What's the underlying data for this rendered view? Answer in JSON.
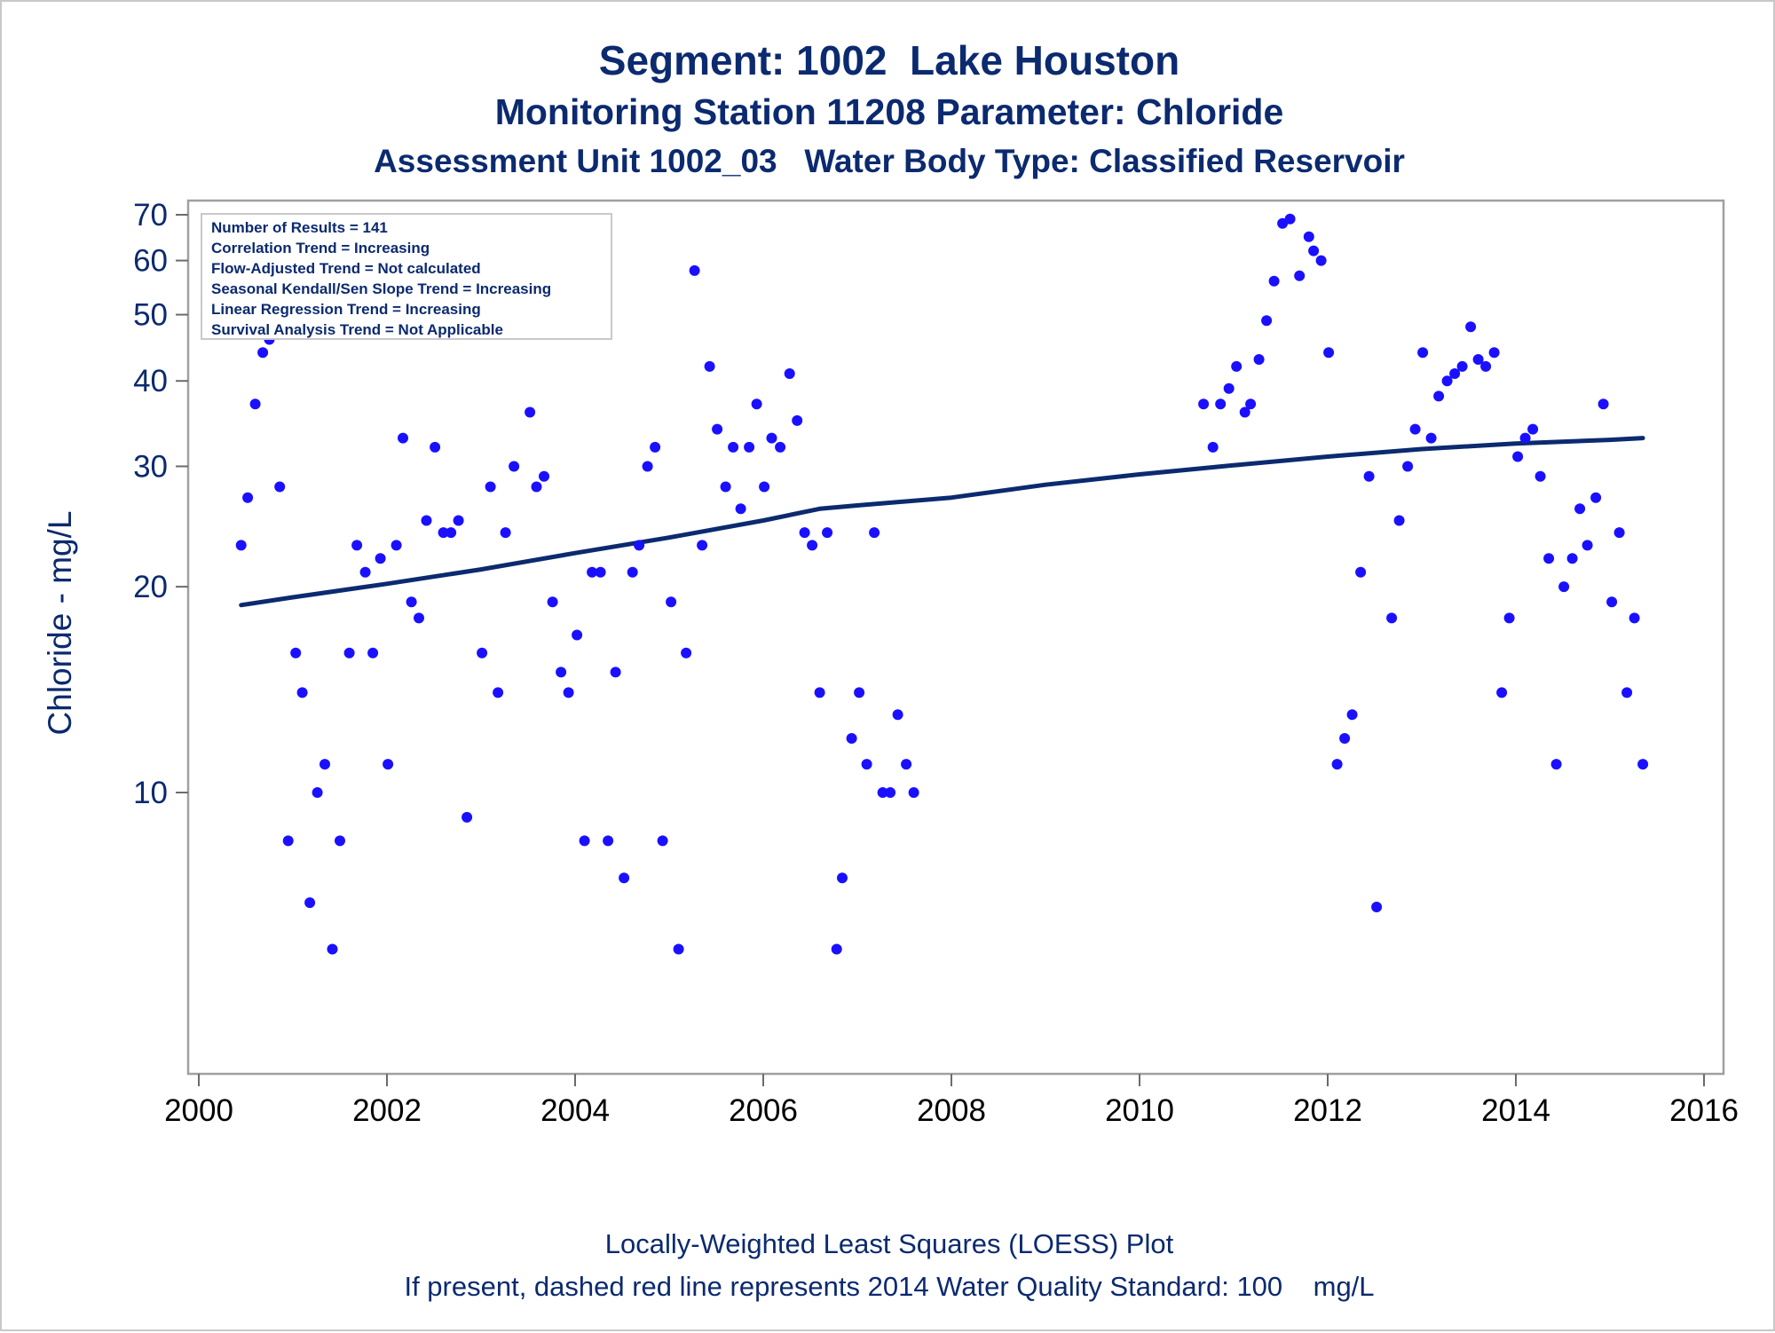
{
  "titles": {
    "line1": "Segment: 1002  Lake Houston",
    "line2": "Monitoring Station 11208 Parameter: Chloride",
    "line3": "Assessment Unit 1002_03   Water Body Type: Classified Reservoir"
  },
  "info_box": [
    "Number of Results = 141",
    "Correlation Trend = Increasing",
    "Flow-Adjusted Trend = Not calculated",
    "Seasonal Kendall/Sen Slope Trend = Increasing",
    "Linear Regression Trend = Increasing",
    "Survival Analysis Trend = Not Applicable"
  ],
  "footer": {
    "line1": "Locally-Weighted Least Squares (LOESS) Plot",
    "line2": "If present, dashed red line represents 2014 Water Quality Standard: 100    mg/L"
  },
  "colors": {
    "text": "#0b2a6f",
    "points": "#1a10ff",
    "trend": "#0b2a6f",
    "frame": "#a0a0a0"
  },
  "chart_data": {
    "type": "scatter",
    "ylabel": "Chloride - mg/L",
    "xlabel": "",
    "y_scale": "log",
    "xlim": [
      2000,
      2016
    ],
    "ylim": [
      5.5,
      72
    ],
    "x_ticks": [
      "2000",
      "2002",
      "2004",
      "2006",
      "2008",
      "2010",
      "2012",
      "2014",
      "2016"
    ],
    "y_ticks": [
      "10",
      "20",
      "30",
      "40",
      "50",
      "60",
      "70"
    ],
    "grid": false,
    "points": [
      [
        2000.45,
        23
      ],
      [
        2000.52,
        27
      ],
      [
        2000.6,
        37
      ],
      [
        2000.68,
        44
      ],
      [
        2000.75,
        46
      ],
      [
        2000.86,
        28
      ],
      [
        2000.95,
        8.5
      ],
      [
        2001.03,
        16
      ],
      [
        2001.1,
        14
      ],
      [
        2001.18,
        6.9
      ],
      [
        2001.26,
        10
      ],
      [
        2001.34,
        11
      ],
      [
        2001.42,
        5.9
      ],
      [
        2001.5,
        8.5
      ],
      [
        2001.6,
        16
      ],
      [
        2001.68,
        23
      ],
      [
        2001.77,
        21
      ],
      [
        2001.85,
        16
      ],
      [
        2001.93,
        22
      ],
      [
        2002.01,
        11
      ],
      [
        2002.1,
        23
      ],
      [
        2002.17,
        33
      ],
      [
        2002.26,
        19
      ],
      [
        2002.34,
        18
      ],
      [
        2002.42,
        25
      ],
      [
        2002.51,
        32
      ],
      [
        2002.6,
        24
      ],
      [
        2002.68,
        24
      ],
      [
        2002.76,
        25
      ],
      [
        2002.85,
        9.2
      ],
      [
        2003.01,
        16
      ],
      [
        2003.1,
        28
      ],
      [
        2003.18,
        14
      ],
      [
        2003.26,
        24
      ],
      [
        2003.35,
        30
      ],
      [
        2003.52,
        36
      ],
      [
        2003.59,
        28
      ],
      [
        2003.67,
        29
      ],
      [
        2003.76,
        19
      ],
      [
        2003.85,
        15
      ],
      [
        2003.93,
        14
      ],
      [
        2004.02,
        17
      ],
      [
        2004.1,
        8.5
      ],
      [
        2004.18,
        21
      ],
      [
        2004.27,
        21
      ],
      [
        2004.35,
        8.5
      ],
      [
        2004.43,
        15
      ],
      [
        2004.52,
        7.5
      ],
      [
        2004.61,
        21
      ],
      [
        2004.68,
        23
      ],
      [
        2004.77,
        30
      ],
      [
        2004.85,
        32
      ],
      [
        2004.93,
        8.5
      ],
      [
        2005.02,
        19
      ],
      [
        2005.1,
        5.9
      ],
      [
        2005.18,
        16
      ],
      [
        2005.27,
        58
      ],
      [
        2005.35,
        23
      ],
      [
        2005.43,
        42
      ],
      [
        2005.51,
        34
      ],
      [
        2005.6,
        28
      ],
      [
        2005.68,
        32
      ],
      [
        2005.76,
        26
      ],
      [
        2005.85,
        32
      ],
      [
        2005.93,
        37
      ],
      [
        2006.01,
        28
      ],
      [
        2006.09,
        33
      ],
      [
        2006.18,
        32
      ],
      [
        2006.28,
        41
      ],
      [
        2006.36,
        35
      ],
      [
        2006.44,
        24
      ],
      [
        2006.52,
        23
      ],
      [
        2006.6,
        14
      ],
      [
        2006.68,
        24
      ],
      [
        2006.78,
        5.9
      ],
      [
        2006.84,
        7.5
      ],
      [
        2006.94,
        12
      ],
      [
        2007.02,
        14
      ],
      [
        2007.1,
        11
      ],
      [
        2007.18,
        24
      ],
      [
        2007.27,
        10
      ],
      [
        2007.35,
        10
      ],
      [
        2007.43,
        13
      ],
      [
        2007.52,
        11
      ],
      [
        2007.6,
        10
      ],
      [
        2010.68,
        37
      ],
      [
        2010.78,
        32
      ],
      [
        2010.86,
        37
      ],
      [
        2010.95,
        39
      ],
      [
        2011.03,
        42
      ],
      [
        2011.12,
        36
      ],
      [
        2011.18,
        37
      ],
      [
        2011.27,
        43
      ],
      [
        2011.35,
        49
      ],
      [
        2011.43,
        56
      ],
      [
        2011.52,
        68
      ],
      [
        2011.6,
        69
      ],
      [
        2011.7,
        57
      ],
      [
        2011.8,
        65
      ],
      [
        2011.85,
        62
      ],
      [
        2011.93,
        60
      ],
      [
        2012.01,
        44
      ],
      [
        2012.1,
        11
      ],
      [
        2012.18,
        12
      ],
      [
        2012.26,
        13
      ],
      [
        2012.35,
        21
      ],
      [
        2012.44,
        29
      ],
      [
        2012.52,
        6.8
      ],
      [
        2012.68,
        18
      ],
      [
        2012.76,
        25
      ],
      [
        2012.85,
        30
      ],
      [
        2012.93,
        34
      ],
      [
        2013.01,
        44
      ],
      [
        2013.1,
        33
      ],
      [
        2013.18,
        38
      ],
      [
        2013.27,
        40
      ],
      [
        2013.35,
        41
      ],
      [
        2013.43,
        42
      ],
      [
        2013.52,
        48
      ],
      [
        2013.6,
        43
      ],
      [
        2013.68,
        42
      ],
      [
        2013.77,
        44
      ],
      [
        2013.85,
        14
      ],
      [
        2013.93,
        18
      ],
      [
        2014.02,
        31
      ],
      [
        2014.1,
        33
      ],
      [
        2014.18,
        34
      ],
      [
        2014.26,
        29
      ],
      [
        2014.35,
        22
      ],
      [
        2014.43,
        11
      ],
      [
        2014.51,
        20
      ],
      [
        2014.6,
        22
      ],
      [
        2014.68,
        26
      ],
      [
        2014.76,
        23
      ],
      [
        2014.85,
        27
      ],
      [
        2014.93,
        37
      ],
      [
        2015.02,
        19
      ],
      [
        2015.1,
        24
      ],
      [
        2015.18,
        14
      ],
      [
        2015.26,
        18
      ],
      [
        2015.35,
        11
      ]
    ],
    "loess_trend": [
      [
        2000.45,
        18.8
      ],
      [
        2001.0,
        19.3
      ],
      [
        2002.0,
        20.2
      ],
      [
        2003.0,
        21.2
      ],
      [
        2004.0,
        22.4
      ],
      [
        2005.0,
        23.6
      ],
      [
        2006.0,
        25.0
      ],
      [
        2006.6,
        26.0
      ],
      [
        2007.0,
        26.3
      ],
      [
        2008.0,
        27.0
      ],
      [
        2009.0,
        28.2
      ],
      [
        2010.0,
        29.2
      ],
      [
        2011.0,
        30.1
      ],
      [
        2012.0,
        31.0
      ],
      [
        2013.0,
        31.8
      ],
      [
        2014.0,
        32.4
      ],
      [
        2015.0,
        32.8
      ],
      [
        2015.35,
        33.0
      ]
    ]
  }
}
